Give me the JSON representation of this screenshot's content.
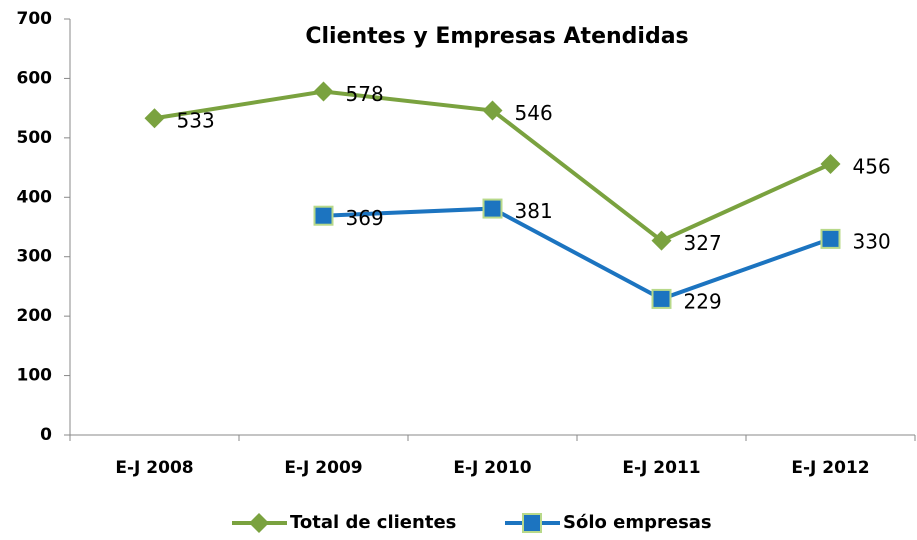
{
  "chart_data": {
    "type": "line",
    "title": "Clientes y Empresas Atendidas",
    "categories": [
      "E-J 2008",
      "E-J 2009",
      "E-J 2010",
      "E-J 2011",
      "E-J 2012"
    ],
    "series": [
      {
        "name": "Total de clientes",
        "color": "#7aa23f",
        "marker": "diamond",
        "values": [
          533,
          578,
          546,
          327,
          456
        ]
      },
      {
        "name": "Sólo empresas",
        "color": "#1c74c0",
        "marker": "square",
        "values": [
          null,
          369,
          381,
          229,
          330
        ]
      }
    ],
    "ylim": [
      0,
      700
    ],
    "yticks": [
      0,
      100,
      200,
      300,
      400,
      500,
      600,
      700
    ],
    "grid": false,
    "legend": "bottom"
  }
}
